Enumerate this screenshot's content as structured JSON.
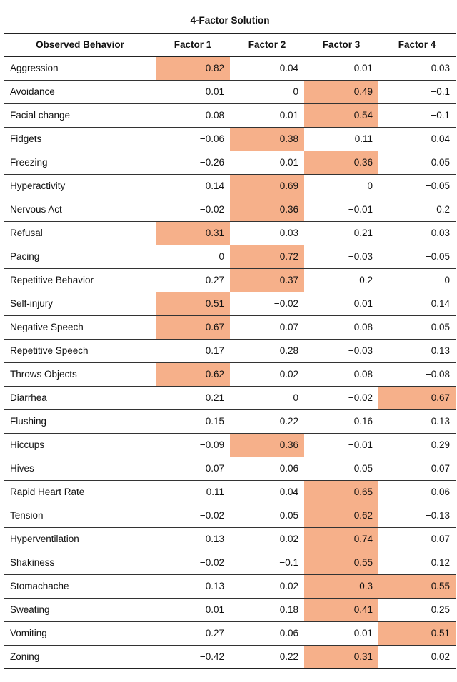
{
  "table": {
    "title": "4-Factor Solution",
    "headers": [
      "Observed Behavior",
      "Factor 1",
      "Factor 2",
      "Factor 3",
      "Factor 4"
    ],
    "highlight_color": "#f6b08a",
    "rows": [
      {
        "behavior": "Aggression",
        "values": [
          "0.82",
          "0.04",
          "−0.01",
          "−0.03"
        ],
        "highlight": [
          true,
          false,
          false,
          false
        ]
      },
      {
        "behavior": "Avoidance",
        "values": [
          "0.01",
          "0",
          "0.49",
          "−0.1"
        ],
        "highlight": [
          false,
          false,
          true,
          false
        ]
      },
      {
        "behavior": "Facial change",
        "values": [
          "0.08",
          "0.01",
          "0.54",
          "−0.1"
        ],
        "highlight": [
          false,
          false,
          true,
          false
        ]
      },
      {
        "behavior": "Fidgets",
        "values": [
          "−0.06",
          "0.38",
          "0.11",
          "0.04"
        ],
        "highlight": [
          false,
          true,
          false,
          false
        ]
      },
      {
        "behavior": "Freezing",
        "values": [
          "−0.26",
          "0.01",
          "0.36",
          "0.05"
        ],
        "highlight": [
          false,
          false,
          true,
          false
        ]
      },
      {
        "behavior": "Hyperactivity",
        "values": [
          "0.14",
          "0.69",
          "0",
          "−0.05"
        ],
        "highlight": [
          false,
          true,
          false,
          false
        ]
      },
      {
        "behavior": "Nervous Act",
        "values": [
          "−0.02",
          "0.36",
          "−0.01",
          "0.2"
        ],
        "highlight": [
          false,
          true,
          false,
          false
        ]
      },
      {
        "behavior": "Refusal",
        "values": [
          "0.31",
          "0.03",
          "0.21",
          "0.03"
        ],
        "highlight": [
          true,
          false,
          false,
          false
        ]
      },
      {
        "behavior": "Pacing",
        "values": [
          "0",
          "0.72",
          "−0.03",
          "−0.05"
        ],
        "highlight": [
          false,
          true,
          false,
          false
        ]
      },
      {
        "behavior": "Repetitive Behavior",
        "values": [
          "0.27",
          "0.37",
          "0.2",
          "0"
        ],
        "highlight": [
          false,
          true,
          false,
          false
        ]
      },
      {
        "behavior": "Self-injury",
        "values": [
          "0.51",
          "−0.02",
          "0.01",
          "0.14"
        ],
        "highlight": [
          true,
          false,
          false,
          false
        ]
      },
      {
        "behavior": "Negative Speech",
        "values": [
          "0.67",
          "0.07",
          "0.08",
          "0.05"
        ],
        "highlight": [
          true,
          false,
          false,
          false
        ]
      },
      {
        "behavior": "Repetitive Speech",
        "values": [
          "0.17",
          "0.28",
          "−0.03",
          "0.13"
        ],
        "highlight": [
          false,
          false,
          false,
          false
        ]
      },
      {
        "behavior": "Throws Objects",
        "values": [
          "0.62",
          "0.02",
          "0.08",
          "−0.08"
        ],
        "highlight": [
          true,
          false,
          false,
          false
        ]
      },
      {
        "behavior": "Diarrhea",
        "values": [
          "0.21",
          "0",
          "−0.02",
          "0.67"
        ],
        "highlight": [
          false,
          false,
          false,
          true
        ]
      },
      {
        "behavior": "Flushing",
        "values": [
          "0.15",
          "0.22",
          "0.16",
          "0.13"
        ],
        "highlight": [
          false,
          false,
          false,
          false
        ]
      },
      {
        "behavior": "Hiccups",
        "values": [
          "−0.09",
          "0.36",
          "−0.01",
          "0.29"
        ],
        "highlight": [
          false,
          true,
          false,
          false
        ]
      },
      {
        "behavior": "Hives",
        "values": [
          "0.07",
          "0.06",
          "0.05",
          "0.07"
        ],
        "highlight": [
          false,
          false,
          false,
          false
        ]
      },
      {
        "behavior": "Rapid Heart Rate",
        "values": [
          "0.11",
          "−0.04",
          "0.65",
          "−0.06"
        ],
        "highlight": [
          false,
          false,
          true,
          false
        ]
      },
      {
        "behavior": "Tension",
        "values": [
          "−0.02",
          "0.05",
          "0.62",
          "−0.13"
        ],
        "highlight": [
          false,
          false,
          true,
          false
        ]
      },
      {
        "behavior": "Hyperventilation",
        "values": [
          "0.13",
          "−0.02",
          "0.74",
          "0.07"
        ],
        "highlight": [
          false,
          false,
          true,
          false
        ]
      },
      {
        "behavior": "Shakiness",
        "values": [
          "−0.02",
          "−0.1",
          "0.55",
          "0.12"
        ],
        "highlight": [
          false,
          false,
          true,
          false
        ]
      },
      {
        "behavior": "Stomachache",
        "values": [
          "−0.13",
          "0.02",
          "0.3",
          "0.55"
        ],
        "highlight": [
          false,
          false,
          true,
          true
        ]
      },
      {
        "behavior": "Sweating",
        "values": [
          "0.01",
          "0.18",
          "0.41",
          "0.25"
        ],
        "highlight": [
          false,
          false,
          true,
          false
        ]
      },
      {
        "behavior": "Vomiting",
        "values": [
          "0.27",
          "−0.06",
          "0.01",
          "0.51"
        ],
        "highlight": [
          false,
          false,
          false,
          true
        ]
      },
      {
        "behavior": "Zoning",
        "values": [
          "−0.42",
          "0.22",
          "0.31",
          "0.02"
        ],
        "highlight": [
          false,
          false,
          true,
          false
        ]
      }
    ]
  }
}
